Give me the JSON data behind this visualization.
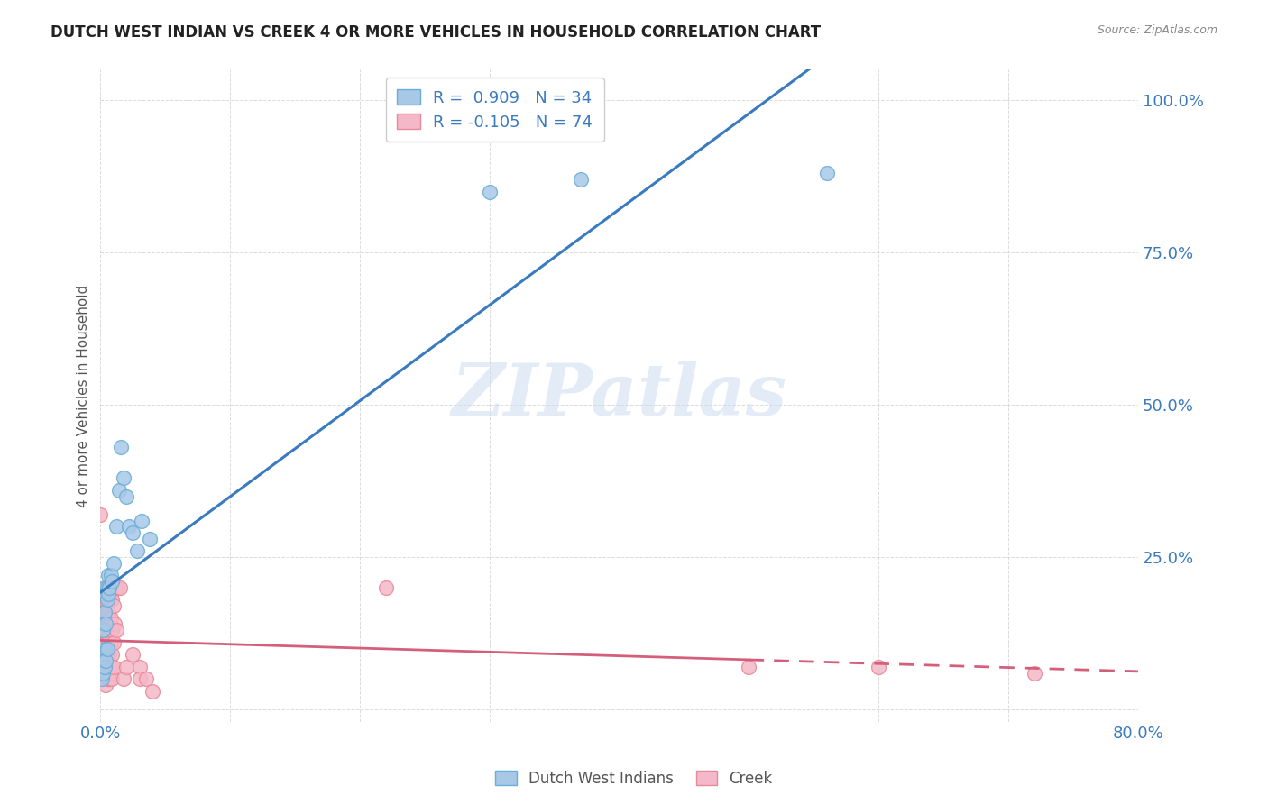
{
  "title": "DUTCH WEST INDIAN VS CREEK 4 OR MORE VEHICLES IN HOUSEHOLD CORRELATION CHART",
  "source": "Source: ZipAtlas.com",
  "ylabel": "4 or more Vehicles in Household",
  "legend_label1": "Dutch West Indians",
  "legend_label2": "Creek",
  "blue_color": "#a8c8e8",
  "blue_edge_color": "#6aaed6",
  "pink_color": "#f4b8c8",
  "pink_edge_color": "#e8899a",
  "blue_line_color": "#3a7abf",
  "pink_line_color": "#d45f7a",
  "background_color": "#ffffff",
  "grid_color": "#cccccc",
  "watermark": "ZIPatlas",
  "xlim": [
    0.0,
    0.8
  ],
  "ylim": [
    -0.02,
    1.05
  ],
  "xtick_positions": [
    0.0,
    0.1,
    0.2,
    0.3,
    0.4,
    0.5,
    0.6,
    0.7,
    0.8
  ],
  "ytick_positions": [
    0.0,
    0.25,
    0.5,
    0.75,
    1.0
  ],
  "blue_scatter": [
    [
      0.001,
      0.05
    ],
    [
      0.001,
      0.08
    ],
    [
      0.002,
      0.06
    ],
    [
      0.002,
      0.09
    ],
    [
      0.002,
      0.13
    ],
    [
      0.003,
      0.07
    ],
    [
      0.003,
      0.1
    ],
    [
      0.003,
      0.16
    ],
    [
      0.003,
      0.2
    ],
    [
      0.004,
      0.08
    ],
    [
      0.004,
      0.14
    ],
    [
      0.004,
      0.19
    ],
    [
      0.005,
      0.1
    ],
    [
      0.005,
      0.18
    ],
    [
      0.005,
      0.2
    ],
    [
      0.006,
      0.19
    ],
    [
      0.006,
      0.22
    ],
    [
      0.007,
      0.2
    ],
    [
      0.008,
      0.22
    ],
    [
      0.009,
      0.21
    ],
    [
      0.01,
      0.24
    ],
    [
      0.012,
      0.3
    ],
    [
      0.014,
      0.36
    ],
    [
      0.016,
      0.43
    ],
    [
      0.018,
      0.38
    ],
    [
      0.02,
      0.35
    ],
    [
      0.022,
      0.3
    ],
    [
      0.025,
      0.29
    ],
    [
      0.028,
      0.26
    ],
    [
      0.032,
      0.31
    ],
    [
      0.038,
      0.28
    ],
    [
      0.3,
      0.85
    ],
    [
      0.37,
      0.87
    ],
    [
      0.56,
      0.88
    ]
  ],
  "pink_scatter": [
    [
      0.0,
      0.32
    ],
    [
      0.001,
      0.1
    ],
    [
      0.001,
      0.08
    ],
    [
      0.001,
      0.07
    ],
    [
      0.001,
      0.06
    ],
    [
      0.002,
      0.16
    ],
    [
      0.002,
      0.14
    ],
    [
      0.002,
      0.13
    ],
    [
      0.002,
      0.11
    ],
    [
      0.002,
      0.09
    ],
    [
      0.002,
      0.08
    ],
    [
      0.002,
      0.07
    ],
    [
      0.002,
      0.06
    ],
    [
      0.003,
      0.18
    ],
    [
      0.003,
      0.15
    ],
    [
      0.003,
      0.14
    ],
    [
      0.003,
      0.13
    ],
    [
      0.003,
      0.11
    ],
    [
      0.003,
      0.09
    ],
    [
      0.003,
      0.07
    ],
    [
      0.003,
      0.06
    ],
    [
      0.004,
      0.2
    ],
    [
      0.004,
      0.17
    ],
    [
      0.004,
      0.14
    ],
    [
      0.004,
      0.11
    ],
    [
      0.004,
      0.09
    ],
    [
      0.004,
      0.07
    ],
    [
      0.004,
      0.04
    ],
    [
      0.005,
      0.17
    ],
    [
      0.005,
      0.15
    ],
    [
      0.005,
      0.12
    ],
    [
      0.005,
      0.1
    ],
    [
      0.005,
      0.08
    ],
    [
      0.005,
      0.07
    ],
    [
      0.005,
      0.05
    ],
    [
      0.006,
      0.19
    ],
    [
      0.006,
      0.16
    ],
    [
      0.006,
      0.14
    ],
    [
      0.006,
      0.11
    ],
    [
      0.006,
      0.09
    ],
    [
      0.006,
      0.07
    ],
    [
      0.006,
      0.05
    ],
    [
      0.007,
      0.18
    ],
    [
      0.007,
      0.15
    ],
    [
      0.007,
      0.12
    ],
    [
      0.007,
      0.09
    ],
    [
      0.007,
      0.07
    ],
    [
      0.007,
      0.05
    ],
    [
      0.008,
      0.19
    ],
    [
      0.008,
      0.15
    ],
    [
      0.008,
      0.11
    ],
    [
      0.008,
      0.07
    ],
    [
      0.009,
      0.18
    ],
    [
      0.009,
      0.13
    ],
    [
      0.009,
      0.09
    ],
    [
      0.009,
      0.05
    ],
    [
      0.01,
      0.17
    ],
    [
      0.01,
      0.11
    ],
    [
      0.01,
      0.07
    ],
    [
      0.011,
      0.14
    ],
    [
      0.012,
      0.13
    ],
    [
      0.013,
      0.2
    ],
    [
      0.015,
      0.2
    ],
    [
      0.018,
      0.05
    ],
    [
      0.02,
      0.07
    ],
    [
      0.025,
      0.09
    ],
    [
      0.03,
      0.07
    ],
    [
      0.03,
      0.05
    ],
    [
      0.035,
      0.05
    ],
    [
      0.04,
      0.03
    ],
    [
      0.22,
      0.2
    ],
    [
      0.5,
      0.07
    ],
    [
      0.6,
      0.07
    ],
    [
      0.72,
      0.06
    ]
  ]
}
